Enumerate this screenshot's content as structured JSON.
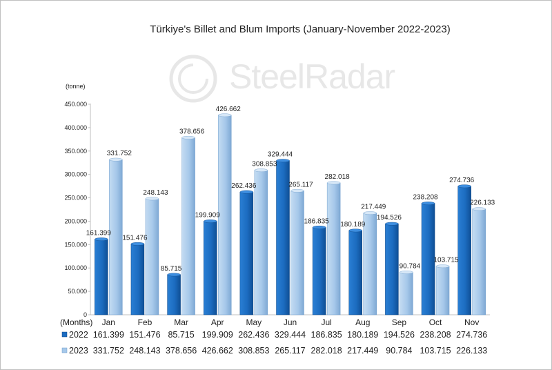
{
  "chart_data": {
    "type": "bar",
    "title": "Türkiye's Billet and Blum Imports (January-November 2022-2023)",
    "ylabel": "(tonne)",
    "xlabel": "(Months)",
    "ylim": [
      0,
      450000
    ],
    "ytick_values": [
      0,
      50000,
      100000,
      150000,
      200000,
      250000,
      300000,
      350000,
      400000,
      450000
    ],
    "ytick_labels": [
      "0",
      "50.000",
      "100.000",
      "150.000",
      "200.000",
      "250.000",
      "300.000",
      "350.000",
      "400.000",
      "450.000"
    ],
    "categories": [
      "Jan",
      "Feb",
      "Mar",
      "Apr",
      "May",
      "Jun",
      "Jul",
      "Aug",
      "Sep",
      "Oct",
      "Nov"
    ],
    "series": [
      {
        "name": "2022",
        "color": "#1f6fc4",
        "values": [
          161399,
          151476,
          85715,
          199909,
          262436,
          329444,
          186835,
          180189,
          194526,
          238208,
          274736
        ],
        "labels": [
          "161.399",
          "151.476",
          "85.715",
          "199.909",
          "262.436",
          "329.444",
          "186.835",
          "180.189",
          "194.526",
          "238.208",
          "274.736"
        ]
      },
      {
        "name": "2023",
        "color": "#a9c9ea",
        "values": [
          331752,
          248143,
          378656,
          426662,
          308853,
          265117,
          282018,
          217449,
          90784,
          103715,
          226133
        ],
        "labels": [
          "331.752",
          "248.143",
          "378.656",
          "426.662",
          "308.853",
          "265.117",
          "282.018",
          "217.449",
          "90.784",
          "103.715",
          "226.133"
        ]
      }
    ],
    "data_table": true,
    "grid": false
  },
  "watermark": {
    "text_a": "Steel",
    "text_b": "Radar"
  }
}
